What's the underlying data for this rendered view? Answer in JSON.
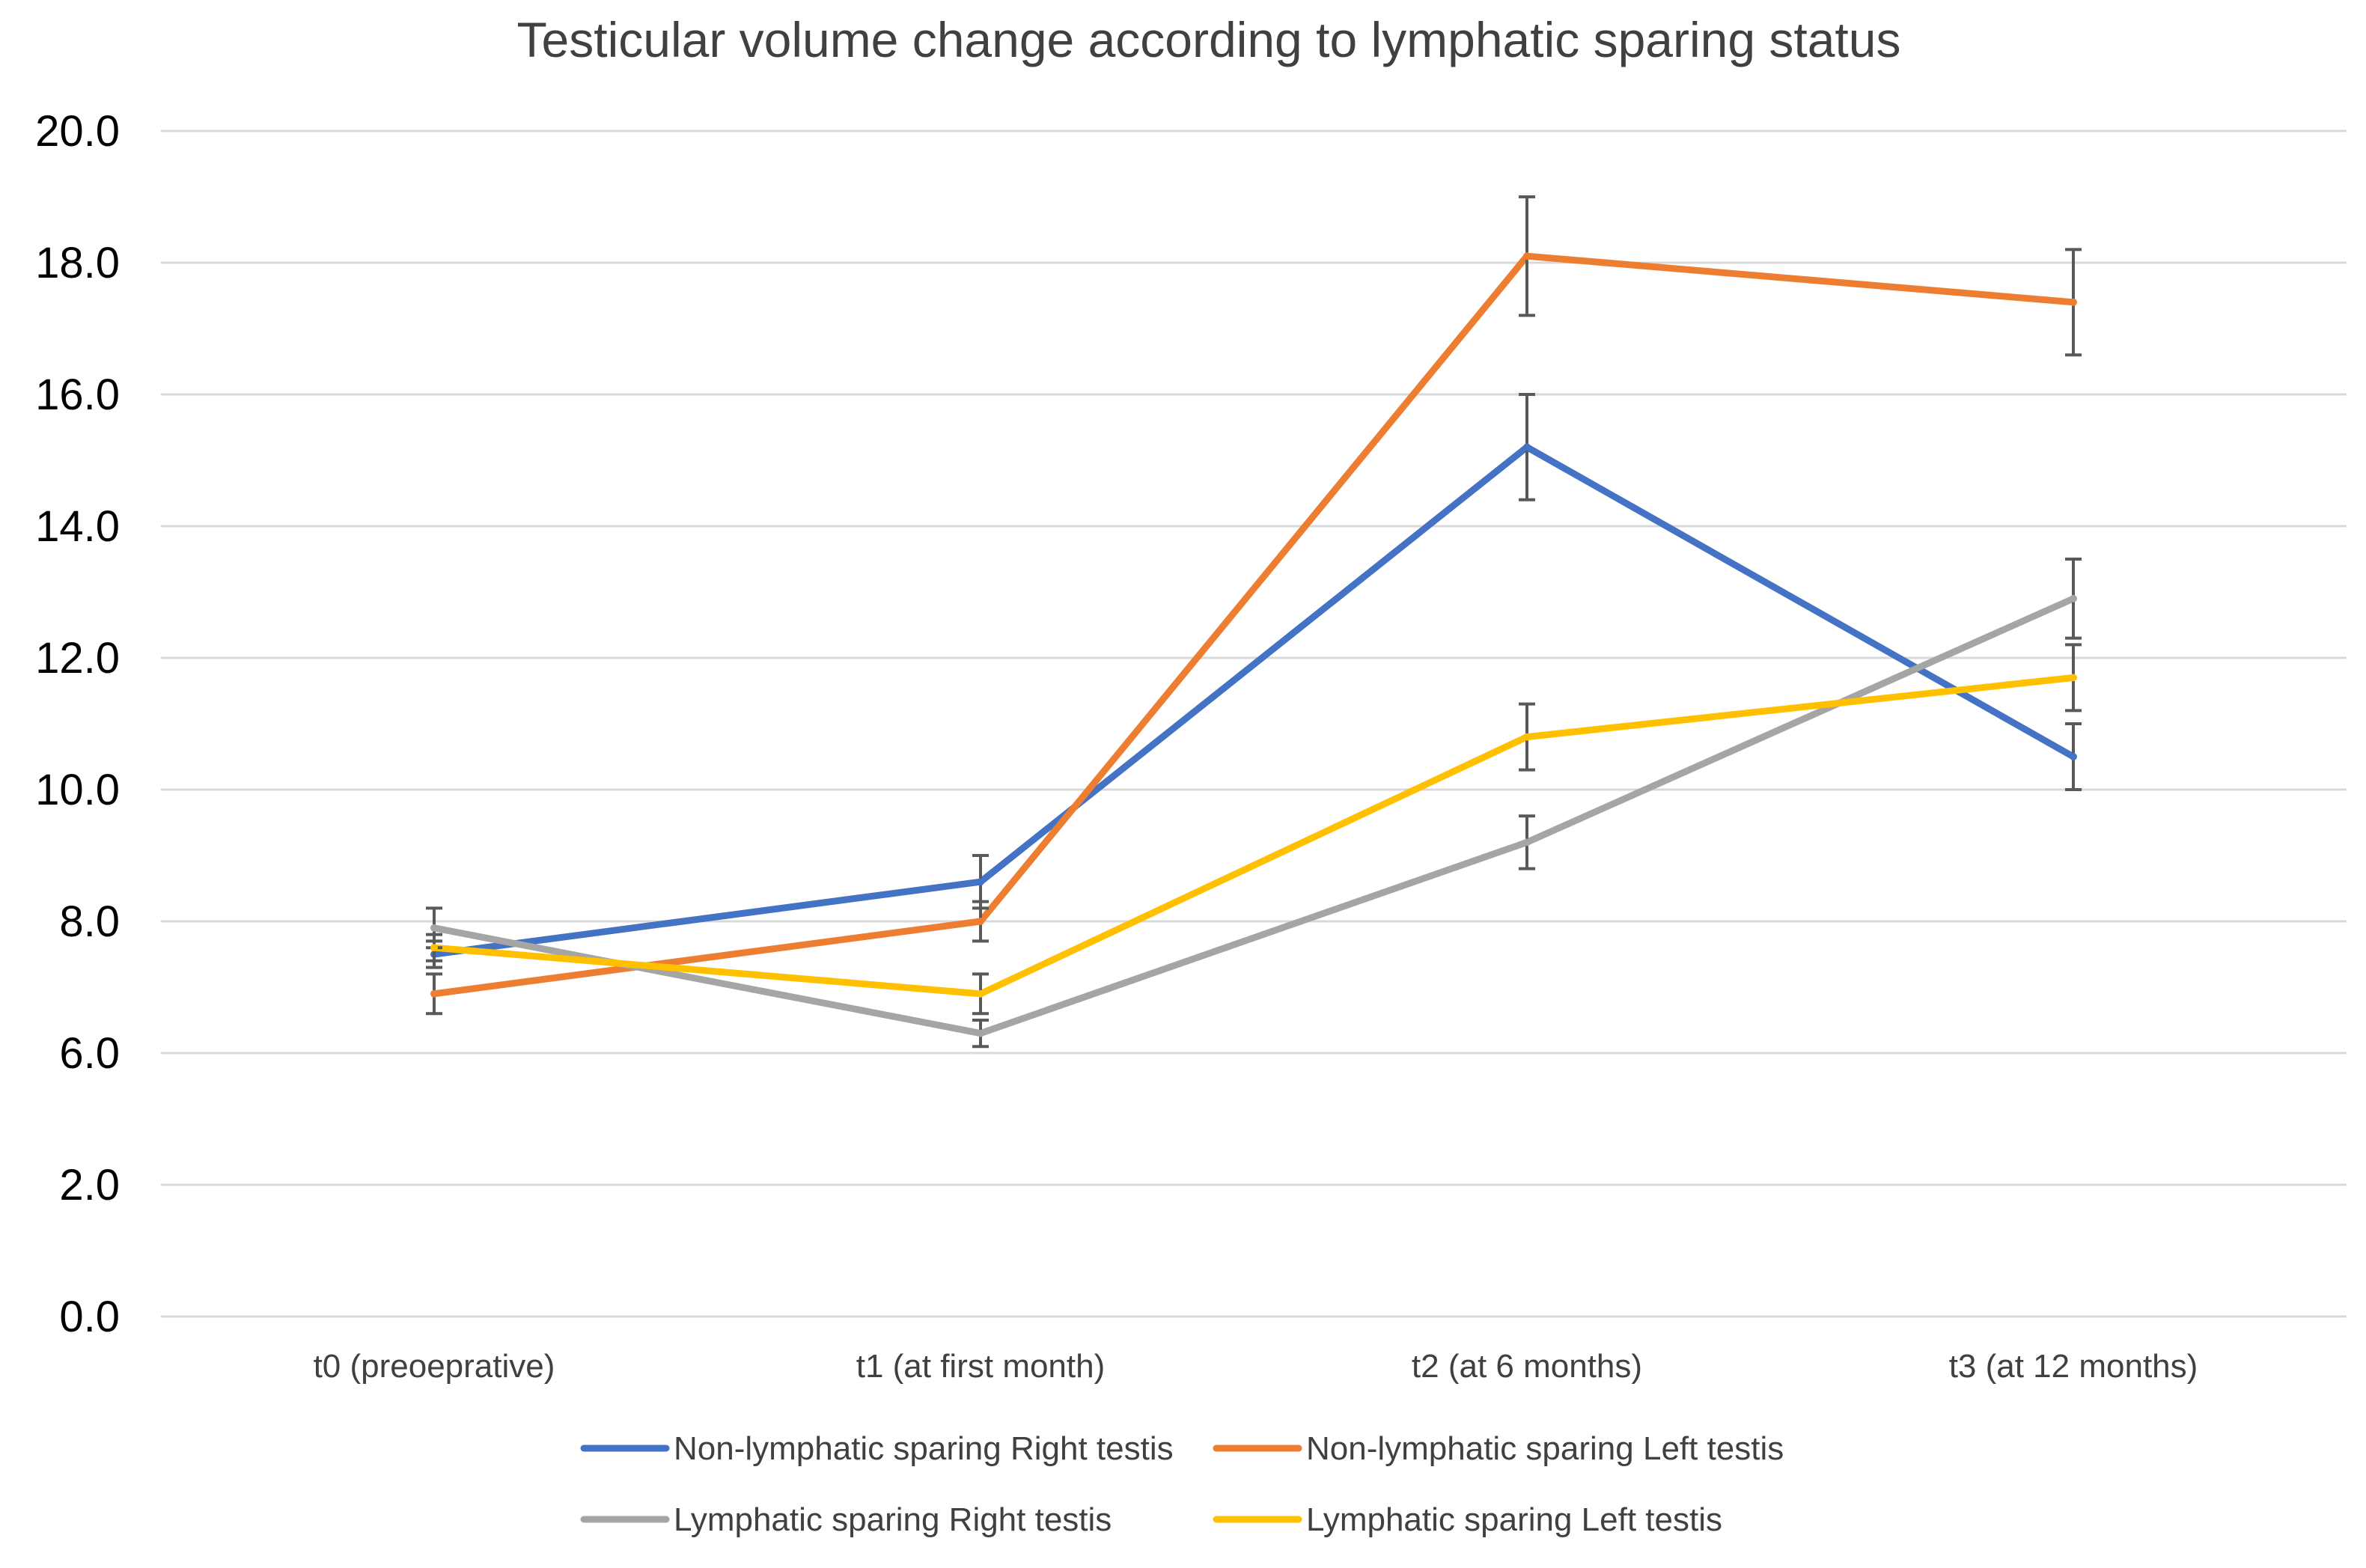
{
  "chart_data": {
    "type": "line",
    "title": "Testicular volume change according to lymphatic sparing status",
    "xlabel": "",
    "ylabel": "",
    "categories": [
      "t0 (preoeprative)",
      "t1 (at first month)",
      "t2 (at 6 months)",
      "t3 (at 12 months)"
    ],
    "y_ticks": [
      "0.0",
      "2.0",
      "6.0",
      "8.0",
      "10.0",
      "12.0",
      "14.0",
      "16.0",
      "18.0",
      "20.0"
    ],
    "grid": true,
    "legend_position": "bottom",
    "series": [
      {
        "name": "Non-lymphatic sparing Right testis",
        "color": "#4472C4",
        "values": [
          7.5,
          8.6,
          15.2,
          10.5
        ],
        "errors": [
          0.2,
          0.4,
          0.8,
          0.5
        ]
      },
      {
        "name": "Non-lymphatic sparing Left testis",
        "color": "#ED7D31",
        "values": [
          6.9,
          8.0,
          18.1,
          17.4
        ],
        "errors": [
          0.3,
          0.3,
          0.9,
          0.8
        ]
      },
      {
        "name": "Lymphatic sparing Right testis",
        "color": "#A5A5A5",
        "values": [
          7.9,
          6.3,
          9.2,
          12.9
        ],
        "errors": [
          0.3,
          0.2,
          0.4,
          0.6
        ]
      },
      {
        "name": "Lymphatic sparing Left testis",
        "color": "#FFC000",
        "values": [
          7.6,
          6.9,
          10.8,
          11.7
        ],
        "errors": [
          0.2,
          0.3,
          0.5,
          0.5
        ]
      }
    ]
  }
}
